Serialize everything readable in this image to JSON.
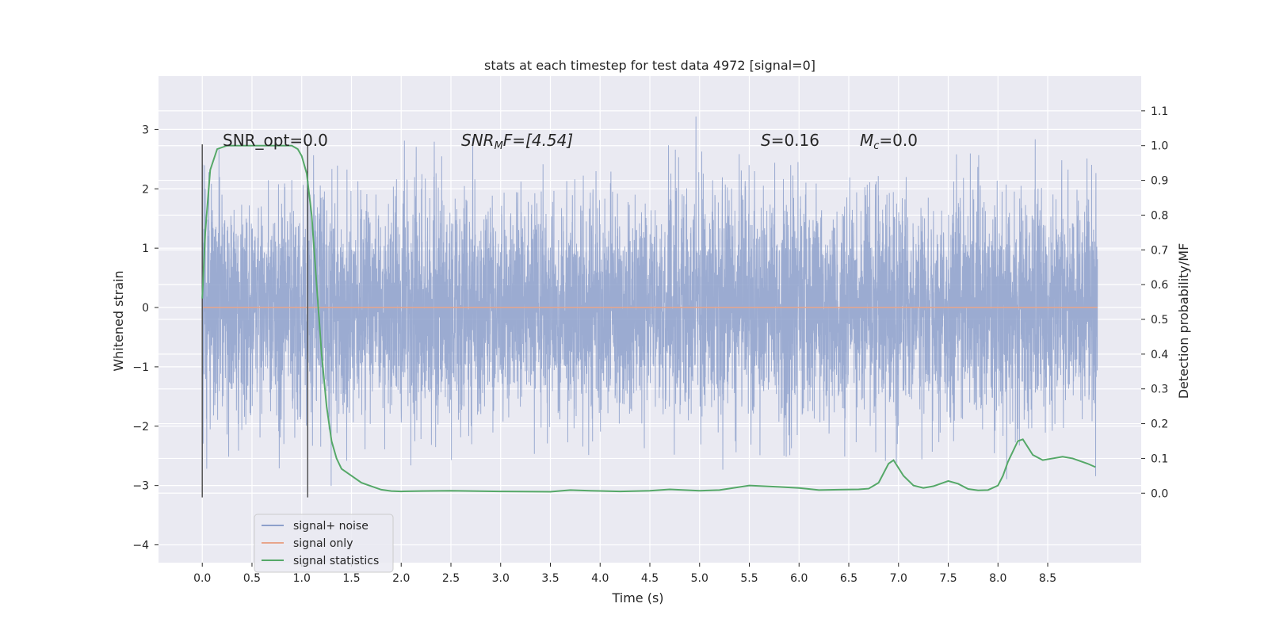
{
  "chart_data": {
    "type": "line",
    "title": "stats at each timestep for test data 4972 [signal=0]",
    "xlabel": "Time (s)",
    "ylabel_left": "Whitened strain",
    "ylabel_right": "Detection probability/MF",
    "xlim": [
      -0.44,
      9.44
    ],
    "ylim_left": [
      -4.3,
      3.9
    ],
    "ylim_right": [
      -0.2,
      1.2
    ],
    "x_ticks": [
      "0.0",
      "0.5",
      "1.0",
      "1.5",
      "2.0",
      "2.5",
      "3.0",
      "3.5",
      "4.0",
      "4.5",
      "5.0",
      "5.5",
      "6.0",
      "6.5",
      "7.0",
      "7.5",
      "8.0",
      "8.5"
    ],
    "x_tick_values": [
      0.0,
      0.5,
      1.0,
      1.5,
      2.0,
      2.5,
      3.0,
      3.5,
      4.0,
      4.5,
      5.0,
      5.5,
      6.0,
      6.5,
      7.0,
      7.5,
      8.0,
      8.5
    ],
    "y_left_ticks": [
      "−4",
      "−3",
      "−2",
      "−1",
      "0",
      "1",
      "2",
      "3"
    ],
    "y_left_tick_values": [
      -4,
      -3,
      -2,
      -1,
      0,
      1,
      2,
      3
    ],
    "y_right_ticks": [
      "0.0",
      "0.1",
      "0.2",
      "0.3",
      "0.4",
      "0.5",
      "0.6",
      "0.7",
      "0.8",
      "0.9",
      "1.0",
      "1.1"
    ],
    "y_right_tick_values": [
      0.0,
      0.1,
      0.2,
      0.3,
      0.4,
      0.5,
      0.6,
      0.7,
      0.8,
      0.9,
      1.0,
      1.1
    ],
    "grid": true,
    "legend_placement": "lower-left",
    "legend": [
      "signal+ noise",
      "signal only",
      "signal statistics"
    ],
    "series": [
      {
        "name": "signal+ noise",
        "axis": "left",
        "color": "#8da0cb",
        "description_range": [
          -4.0,
          3.55
        ],
        "x_range": [
          0.0,
          9.0
        ]
      },
      {
        "name": "signal only",
        "axis": "left",
        "color": "#e8a58b",
        "x": [
          0.0,
          9.0
        ],
        "y": [
          0.0,
          0.0
        ]
      },
      {
        "name": "signal statistics",
        "axis": "right",
        "color": "#55a868",
        "x": [
          0.0,
          0.03,
          0.08,
          0.15,
          0.25,
          0.4,
          0.6,
          0.8,
          0.9,
          0.96,
          1.0,
          1.05,
          1.1,
          1.15,
          1.2,
          1.25,
          1.3,
          1.35,
          1.4,
          1.5,
          1.6,
          1.7,
          1.8,
          1.9,
          2.0,
          2.2,
          2.5,
          3.0,
          3.5,
          3.7,
          3.9,
          4.2,
          4.5,
          4.7,
          5.0,
          5.2,
          5.5,
          5.8,
          6.0,
          6.2,
          6.4,
          6.6,
          6.7,
          6.8,
          6.9,
          6.95,
          7.05,
          7.15,
          7.25,
          7.35,
          7.5,
          7.6,
          7.7,
          7.8,
          7.9,
          8.0,
          8.05,
          8.1,
          8.2,
          8.25,
          8.35,
          8.45,
          8.55,
          8.65,
          8.75,
          8.9,
          8.98
        ],
        "y": [
          0.56,
          0.75,
          0.93,
          0.99,
          1.0,
          1.0,
          1.0,
          1.0,
          1.0,
          0.99,
          0.97,
          0.92,
          0.8,
          0.6,
          0.4,
          0.25,
          0.15,
          0.1,
          0.07,
          0.05,
          0.03,
          0.02,
          0.01,
          0.006,
          0.005,
          0.006,
          0.007,
          0.005,
          0.004,
          0.009,
          0.007,
          0.005,
          0.007,
          0.011,
          0.007,
          0.009,
          0.022,
          0.018,
          0.015,
          0.009,
          0.01,
          0.011,
          0.013,
          0.03,
          0.085,
          0.095,
          0.05,
          0.022,
          0.015,
          0.02,
          0.035,
          0.027,
          0.012,
          0.008,
          0.009,
          0.022,
          0.05,
          0.09,
          0.15,
          0.155,
          0.11,
          0.095,
          0.1,
          0.105,
          0.1,
          0.085,
          0.075
        ]
      }
    ],
    "vlines": [
      {
        "x": 0.0,
        "y_from": -3.2,
        "y_to": 2.75,
        "color": "#555555"
      },
      {
        "x": 1.06,
        "y_from": -3.2,
        "y_to": 2.75,
        "color": "#555555"
      }
    ],
    "annotations": {
      "snr_opt": "SNR_opt=0.0",
      "snr_mf_sym": "SNR",
      "snr_mf_sub": "M",
      "snr_mf_rest": "F=[4.54]",
      "s_sym": "S",
      "s_rest": "=0.16",
      "mc_sym": "M",
      "mc_sub": "c",
      "mc_rest": "=0.0"
    },
    "colors": {
      "plot_bg": "#eaeaf2",
      "grid": "#ffffff",
      "noise": "#8da0cb",
      "signal_only": "#e8a58b",
      "stats": "#55a868"
    }
  }
}
